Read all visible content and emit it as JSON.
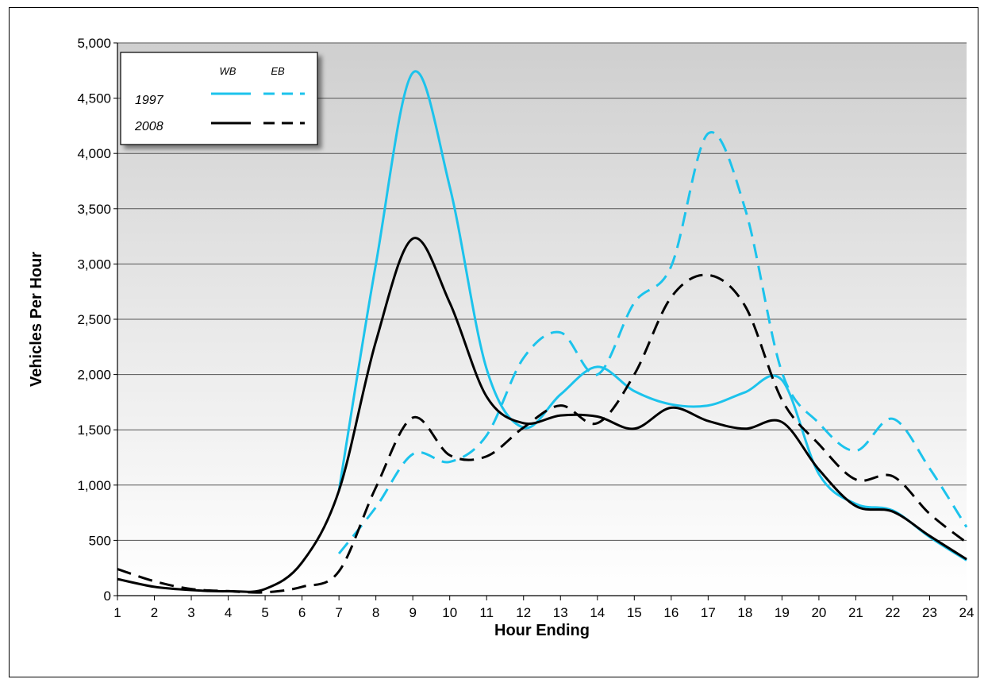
{
  "chart_data": {
    "type": "line",
    "title": "",
    "xlabel": "Hour Ending",
    "ylabel": "Vehicles Per Hour",
    "x": [
      1,
      2,
      3,
      4,
      5,
      6,
      7,
      8,
      9,
      10,
      11,
      12,
      13,
      14,
      15,
      16,
      17,
      18,
      19,
      20,
      21,
      22,
      23,
      24
    ],
    "xlim": [
      1,
      24
    ],
    "ylim": [
      0,
      5000
    ],
    "y_ticks": [
      0,
      500,
      1000,
      1500,
      2000,
      2500,
      3000,
      3500,
      4000,
      4500,
      5000
    ],
    "y_tick_labels": [
      "0",
      "500",
      "1,000",
      "1,500",
      "2,000",
      "2,500",
      "3,000",
      "3,500",
      "4,000",
      "4,500",
      "5,000"
    ],
    "grid": true,
    "legend_placement": "top-left",
    "legend": {
      "column_headers": [
        "WB",
        "EB"
      ],
      "row_labels": [
        "1997",
        "2008"
      ]
    },
    "colors": {
      "1997": "#1cc3ec",
      "2008": "#000000"
    },
    "series": [
      {
        "year": "1997",
        "direction": "WB",
        "style": "solid",
        "values": [
          null,
          null,
          null,
          null,
          null,
          null,
          950,
          3000,
          4730,
          3700,
          2050,
          1520,
          1820,
          2070,
          1850,
          1730,
          1720,
          1840,
          1950,
          1100,
          830,
          770,
          530,
          320
        ]
      },
      {
        "year": "1997",
        "direction": "EB",
        "style": "dashed",
        "values": [
          null,
          null,
          null,
          null,
          null,
          null,
          380,
          800,
          1280,
          1210,
          1450,
          2150,
          2380,
          2000,
          2650,
          2980,
          4180,
          3500,
          2020,
          1560,
          1310,
          1600,
          1150,
          620
        ]
      },
      {
        "year": "2008",
        "direction": "WB",
        "style": "solid",
        "values": [
          150,
          80,
          50,
          40,
          60,
          300,
          950,
          2300,
          3230,
          2650,
          1800,
          1560,
          1630,
          1620,
          1510,
          1700,
          1580,
          1510,
          1570,
          1140,
          810,
          760,
          540,
          330
        ]
      },
      {
        "year": "2008",
        "direction": "EB",
        "style": "dashed",
        "values": [
          240,
          130,
          60,
          40,
          30,
          80,
          220,
          980,
          1610,
          1270,
          1260,
          1520,
          1720,
          1560,
          2000,
          2700,
          2900,
          2620,
          1770,
          1370,
          1050,
          1080,
          740,
          480
        ]
      }
    ]
  }
}
